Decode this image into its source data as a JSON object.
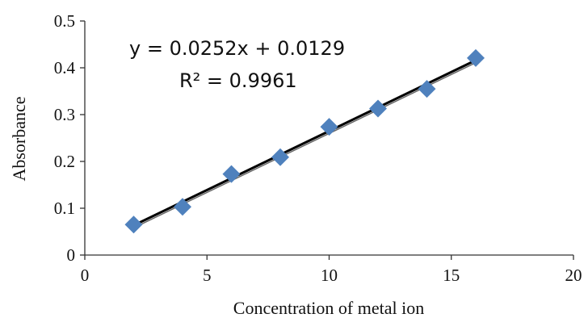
{
  "chart_data": {
    "type": "scatter",
    "xlabel": "Concentration of metal ion",
    "ylabel": "Absorbance",
    "xlim": [
      0,
      20
    ],
    "ylim": [
      0,
      0.5
    ],
    "xticks": [
      "0",
      "5",
      "10",
      "15",
      "20"
    ],
    "yticks": [
      "0",
      "0.1",
      "0.2",
      "0.3",
      "0.4",
      "0.5"
    ],
    "grid": false,
    "marker_color": "#4f81bd",
    "trendline_color": "#000000",
    "series": [
      {
        "x": [
          2,
          4,
          6,
          8,
          10,
          12,
          14,
          16
        ],
        "y": [
          0.065,
          0.103,
          0.173,
          0.209,
          0.274,
          0.313,
          0.355,
          0.421
        ]
      }
    ],
    "trendline": {
      "slope": 0.0252,
      "intercept": 0.0129,
      "equation": "y = 0.0252x + 0.0129",
      "r_squared": "R² = 0.9961"
    }
  }
}
